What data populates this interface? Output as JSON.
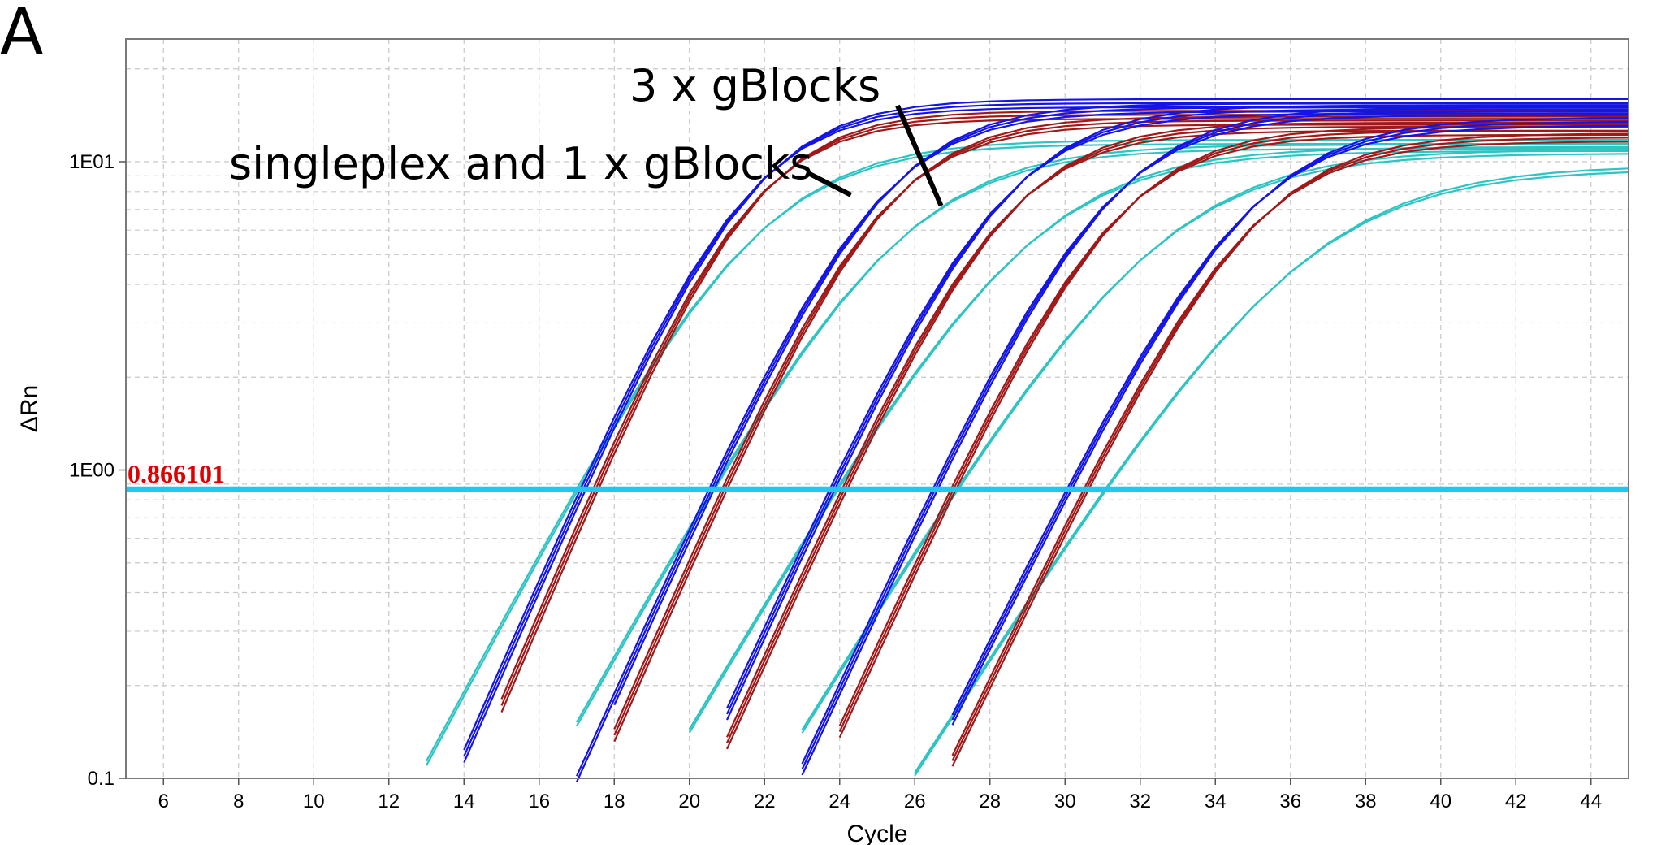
{
  "panel_label": "A",
  "chart_data": {
    "type": "line",
    "xlabel": "Cycle",
    "ylabel": "ΔRn",
    "x_scale": "linear",
    "y_scale": "log",
    "xlim": [
      5,
      45
    ],
    "ylim": [
      0.1,
      25
    ],
    "x_ticks": [
      6,
      8,
      10,
      12,
      14,
      16,
      18,
      20,
      22,
      24,
      26,
      28,
      30,
      32,
      34,
      36,
      38,
      40,
      42,
      44
    ],
    "y_ticks": [
      {
        "value": 0.1,
        "label": "0.1"
      },
      {
        "value": 1,
        "label": "1E00"
      },
      {
        "value": 10,
        "label": "1E01"
      }
    ],
    "grid": true,
    "threshold": {
      "value": 0.866101,
      "label": "0.866101",
      "color": "#1ec8f0",
      "label_color": "#e00000"
    },
    "annotations": [
      {
        "text": "3 x gBlocks",
        "points_to": {
          "x": 26.7,
          "y": 7.2
        }
      },
      {
        "text": "singleplex and 1 x gBlocks",
        "points_to": {
          "x": 24.3,
          "y": 7.8
        }
      }
    ],
    "colors": {
      "blue": "#1414e6",
      "darkred": "#a01818",
      "cyan": "#2ec4c4"
    },
    "series_groups": [
      {
        "color": "blue",
        "count": 3,
        "curves": [
          {
            "midpoint": 21.55,
            "slope": 1.55,
            "plateau": 15.5
          },
          {
            "midpoint": 25.05,
            "slope": 1.6,
            "plateau": 15.0
          },
          {
            "midpoint": 28.3,
            "slope": 1.62,
            "plateau": 14.8
          },
          {
            "midpoint": 31.1,
            "slope": 1.65,
            "plateau": 14.6
          },
          {
            "midpoint": 34.8,
            "slope": 1.75,
            "plateau": 13.5
          }
        ]
      },
      {
        "color": "darkred",
        "count": 3,
        "curves": [
          {
            "midpoint": 21.6,
            "slope": 1.5,
            "plateau": 14.2
          },
          {
            "midpoint": 25.1,
            "slope": 1.55,
            "plateau": 13.6
          },
          {
            "midpoint": 28.35,
            "slope": 1.6,
            "plateau": 13.0
          },
          {
            "midpoint": 31.25,
            "slope": 1.62,
            "plateau": 12.6
          },
          {
            "midpoint": 34.9,
            "slope": 1.7,
            "plateau": 12.0
          }
        ]
      },
      {
        "color": "cyan",
        "count": 2,
        "curves": [
          {
            "midpoint": 21.8,
            "slope": 1.9,
            "plateau": 11.6
          },
          {
            "midpoint": 25.6,
            "slope": 2.0,
            "plateau": 11.2
          },
          {
            "midpoint": 29.1,
            "slope": 2.1,
            "plateau": 11.0
          },
          {
            "midpoint": 32.5,
            "slope": 2.2,
            "plateau": 10.8
          },
          {
            "midpoint": 36.4,
            "slope": 2.3,
            "plateau": 9.6
          }
        ]
      }
    ]
  }
}
